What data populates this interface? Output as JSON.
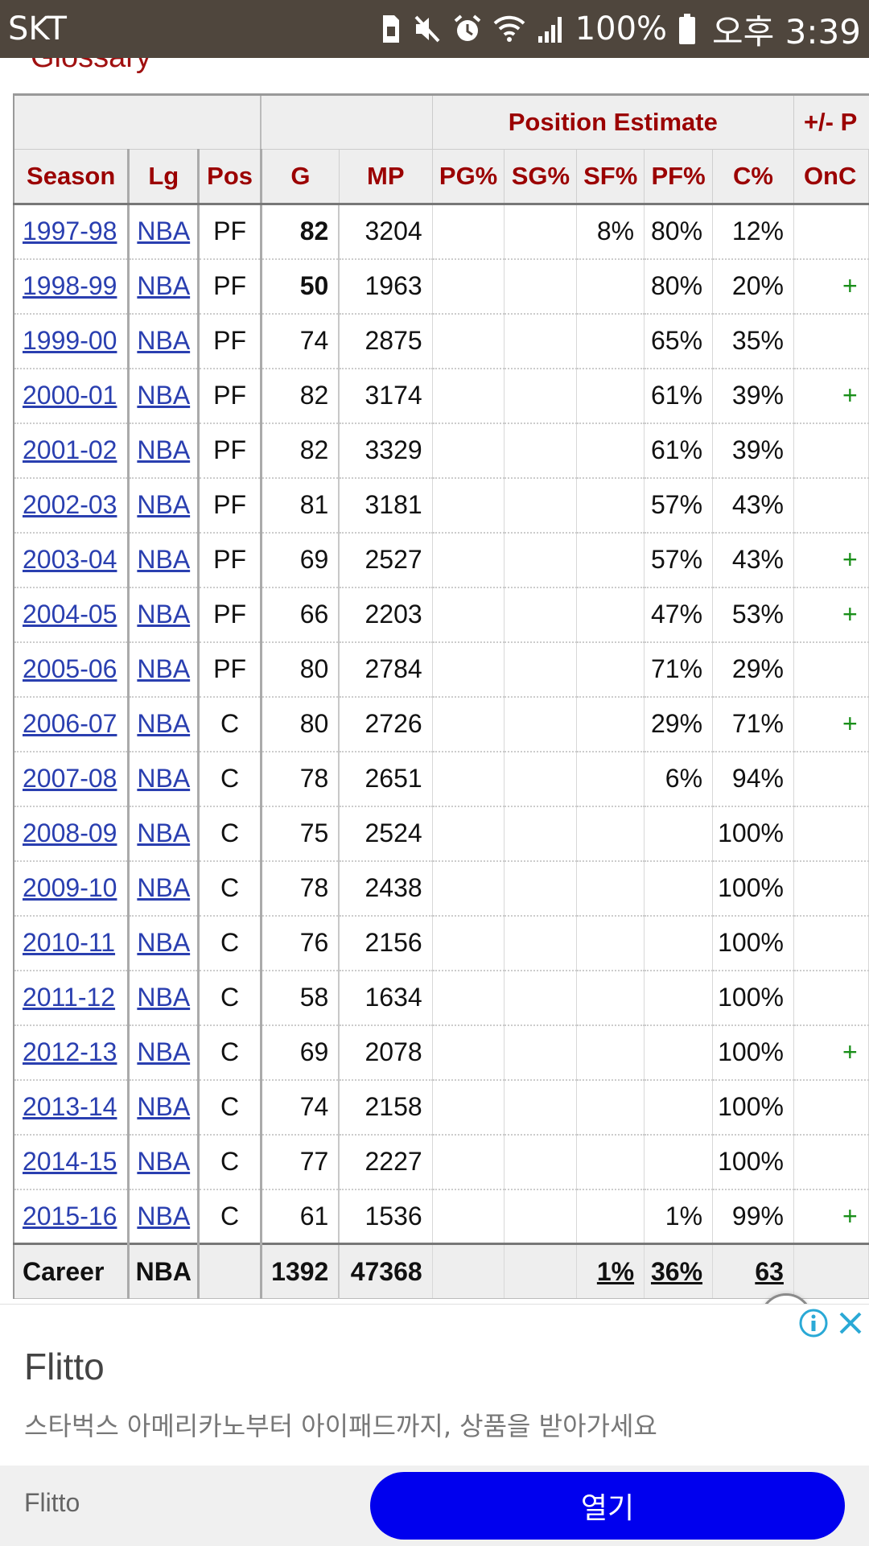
{
  "status_bar": {
    "carrier": "SKT",
    "battery_percent": "100%",
    "time": "오후 3:39",
    "icons": [
      "sim-icon",
      "mute-icon",
      "alarm-icon",
      "wifi-icon",
      "signal-icon",
      "battery-icon"
    ]
  },
  "page": {
    "glossary_label": "Glossary"
  },
  "table": {
    "over_header": {
      "position_estimate": "Position Estimate",
      "plus_minus": "+/- P"
    },
    "columns": [
      "Season",
      "Lg",
      "Pos",
      "G",
      "MP",
      "PG%",
      "SG%",
      "SF%",
      "PF%",
      "C%",
      "OnC"
    ],
    "rows": [
      {
        "season": "1997-98",
        "lg": "NBA",
        "pos": "PF",
        "g": "82",
        "g_bold": true,
        "mp": "3204",
        "pg": "",
        "sg": "",
        "sf": "8%",
        "pf": "80%",
        "c": "12%",
        "onc": ""
      },
      {
        "season": "1998-99",
        "lg": "NBA",
        "pos": "PF",
        "g": "50",
        "g_bold": true,
        "mp": "1963",
        "pg": "",
        "sg": "",
        "sf": "",
        "pf": "80%",
        "c": "20%",
        "onc": "+"
      },
      {
        "season": "1999-00",
        "lg": "NBA",
        "pos": "PF",
        "g": "74",
        "g_bold": false,
        "mp": "2875",
        "pg": "",
        "sg": "",
        "sf": "",
        "pf": "65%",
        "c": "35%",
        "onc": ""
      },
      {
        "season": "2000-01",
        "lg": "NBA",
        "pos": "PF",
        "g": "82",
        "g_bold": false,
        "mp": "3174",
        "pg": "",
        "sg": "",
        "sf": "",
        "pf": "61%",
        "c": "39%",
        "onc": "+"
      },
      {
        "season": "2001-02",
        "lg": "NBA",
        "pos": "PF",
        "g": "82",
        "g_bold": false,
        "mp": "3329",
        "pg": "",
        "sg": "",
        "sf": "",
        "pf": "61%",
        "c": "39%",
        "onc": ""
      },
      {
        "season": "2002-03",
        "lg": "NBA",
        "pos": "PF",
        "g": "81",
        "g_bold": false,
        "mp": "3181",
        "pg": "",
        "sg": "",
        "sf": "",
        "pf": "57%",
        "c": "43%",
        "onc": ""
      },
      {
        "season": "2003-04",
        "lg": "NBA",
        "pos": "PF",
        "g": "69",
        "g_bold": false,
        "mp": "2527",
        "pg": "",
        "sg": "",
        "sf": "",
        "pf": "57%",
        "c": "43%",
        "onc": "+"
      },
      {
        "season": "2004-05",
        "lg": "NBA",
        "pos": "PF",
        "g": "66",
        "g_bold": false,
        "mp": "2203",
        "pg": "",
        "sg": "",
        "sf": "",
        "pf": "47%",
        "c": "53%",
        "onc": "+"
      },
      {
        "season": "2005-06",
        "lg": "NBA",
        "pos": "PF",
        "g": "80",
        "g_bold": false,
        "mp": "2784",
        "pg": "",
        "sg": "",
        "sf": "",
        "pf": "71%",
        "c": "29%",
        "onc": ""
      },
      {
        "season": "2006-07",
        "lg": "NBA",
        "pos": "C",
        "g": "80",
        "g_bold": false,
        "mp": "2726",
        "pg": "",
        "sg": "",
        "sf": "",
        "pf": "29%",
        "c": "71%",
        "onc": "+"
      },
      {
        "season": "2007-08",
        "lg": "NBA",
        "pos": "C",
        "g": "78",
        "g_bold": false,
        "mp": "2651",
        "pg": "",
        "sg": "",
        "sf": "",
        "pf": "6%",
        "c": "94%",
        "onc": ""
      },
      {
        "season": "2008-09",
        "lg": "NBA",
        "pos": "C",
        "g": "75",
        "g_bold": false,
        "mp": "2524",
        "pg": "",
        "sg": "",
        "sf": "",
        "pf": "",
        "c": "100%",
        "onc": ""
      },
      {
        "season": "2009-10",
        "lg": "NBA",
        "pos": "C",
        "g": "78",
        "g_bold": false,
        "mp": "2438",
        "pg": "",
        "sg": "",
        "sf": "",
        "pf": "",
        "c": "100%",
        "onc": ""
      },
      {
        "season": "2010-11",
        "lg": "NBA",
        "pos": "C",
        "g": "76",
        "g_bold": false,
        "mp": "2156",
        "pg": "",
        "sg": "",
        "sf": "",
        "pf": "",
        "c": "100%",
        "onc": ""
      },
      {
        "season": "2011-12",
        "lg": "NBA",
        "pos": "C",
        "g": "58",
        "g_bold": false,
        "mp": "1634",
        "pg": "",
        "sg": "",
        "sf": "",
        "pf": "",
        "c": "100%",
        "onc": ""
      },
      {
        "season": "2012-13",
        "lg": "NBA",
        "pos": "C",
        "g": "69",
        "g_bold": false,
        "mp": "2078",
        "pg": "",
        "sg": "",
        "sf": "",
        "pf": "",
        "c": "100%",
        "onc": "+"
      },
      {
        "season": "2013-14",
        "lg": "NBA",
        "pos": "C",
        "g": "74",
        "g_bold": false,
        "mp": "2158",
        "pg": "",
        "sg": "",
        "sf": "",
        "pf": "",
        "c": "100%",
        "onc": ""
      },
      {
        "season": "2014-15",
        "lg": "NBA",
        "pos": "C",
        "g": "77",
        "g_bold": false,
        "mp": "2227",
        "pg": "",
        "sg": "",
        "sf": "",
        "pf": "",
        "c": "100%",
        "onc": ""
      },
      {
        "season": "2015-16",
        "lg": "NBA",
        "pos": "C",
        "g": "61",
        "g_bold": false,
        "mp": "1536",
        "pg": "",
        "sg": "",
        "sf": "",
        "pf": "1%",
        "c": "99%",
        "onc": "+"
      }
    ],
    "career": {
      "season": "Career",
      "lg": "NBA",
      "pos": "",
      "g": "1392",
      "mp": "47368",
      "pg": "",
      "sg": "",
      "sf": "1%",
      "pf": "36%",
      "c": "63",
      "onc": ""
    }
  },
  "ad": {
    "brand": "Flitto",
    "description": "스타벅스 아메리카노부터 아이패드까지, 상품을 받아가세요",
    "advertiser": "Flitto",
    "open_button": "열기",
    "info_color": "#2aa9d6",
    "close_color": "#2aa9d6",
    "button_color": "#0000ee"
  }
}
